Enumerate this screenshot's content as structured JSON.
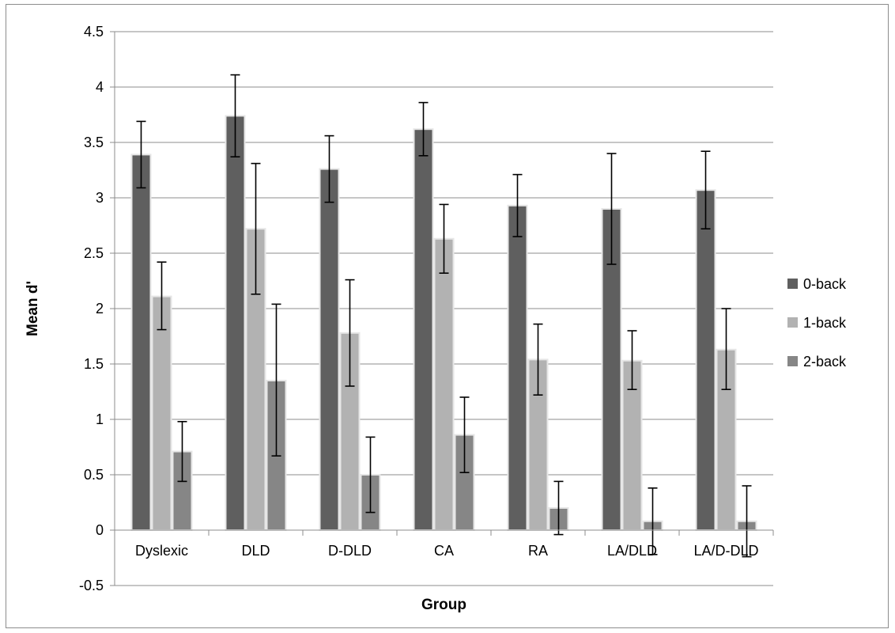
{
  "chart_data": {
    "type": "bar",
    "title": "",
    "xlabel": "Group",
    "ylabel": "Mean d'",
    "ylim": [
      -0.5,
      4.5
    ],
    "ytick_step": 0.5,
    "ytick_labels": [
      "-0.5",
      "0",
      "0.5",
      "1",
      "1.5",
      "2",
      "2.5",
      "3",
      "3.5",
      "4",
      "4.5"
    ],
    "grid": "horizontal",
    "legend_position": "right",
    "categories": [
      "Dyslexic",
      "DLD",
      "D-DLD",
      "CA",
      "RA",
      "LA/DLD",
      "LA/D-DLD"
    ],
    "series": [
      {
        "name": "0-back",
        "color": "#5f5f5f",
        "values": [
          3.39,
          3.74,
          3.26,
          3.62,
          2.93,
          2.9,
          3.07
        ],
        "error_low": [
          3.09,
          3.37,
          2.96,
          3.38,
          2.65,
          2.4,
          2.72
        ],
        "error_high": [
          3.69,
          4.11,
          3.56,
          3.86,
          3.21,
          3.4,
          3.42
        ]
      },
      {
        "name": "1-back",
        "color": "#b2b2b2",
        "values": [
          2.11,
          2.72,
          1.78,
          2.63,
          1.54,
          1.53,
          1.63
        ],
        "error_low": [
          1.81,
          2.13,
          1.3,
          2.32,
          1.22,
          1.27,
          1.27
        ],
        "error_high": [
          2.42,
          3.31,
          2.26,
          2.94,
          1.86,
          1.8,
          2.0
        ]
      },
      {
        "name": "2-back",
        "color": "#868686",
        "values": [
          0.71,
          1.35,
          0.5,
          0.86,
          0.2,
          0.08,
          0.08
        ],
        "error_low": [
          0.44,
          0.67,
          0.16,
          0.52,
          -0.04,
          -0.22,
          -0.24
        ],
        "error_high": [
          0.98,
          2.04,
          0.84,
          1.2,
          0.44,
          0.38,
          0.4
        ]
      }
    ]
  }
}
